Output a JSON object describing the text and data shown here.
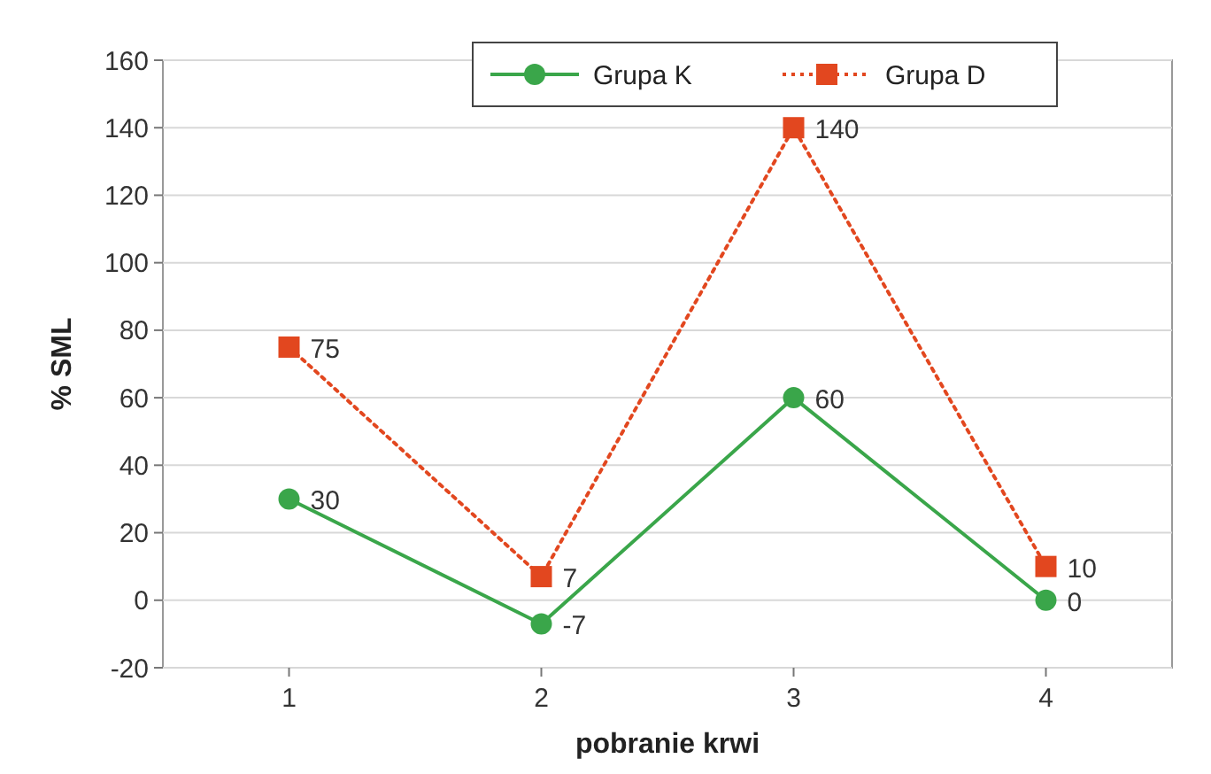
{
  "chart_data": {
    "type": "line",
    "xlabel": "pobranie krwi",
    "ylabel": "% SML",
    "categories": [
      "1",
      "2",
      "3",
      "4"
    ],
    "series": [
      {
        "name": "Grupa K",
        "color": "#3aa64a",
        "values": [
          30,
          -7,
          60,
          0
        ],
        "marker": "circle",
        "line_style": "solid"
      },
      {
        "name": "Grupa D",
        "color": "#e2471f",
        "values": [
          75,
          7,
          140,
          10
        ],
        "marker": "square",
        "line_style": "dotted"
      }
    ],
    "ylim": [
      -20,
      160
    ],
    "yticks": [
      -20,
      0,
      20,
      40,
      60,
      80,
      100,
      120,
      140,
      160
    ],
    "grid": "y",
    "legend": "top right",
    "data_labels": true
  }
}
